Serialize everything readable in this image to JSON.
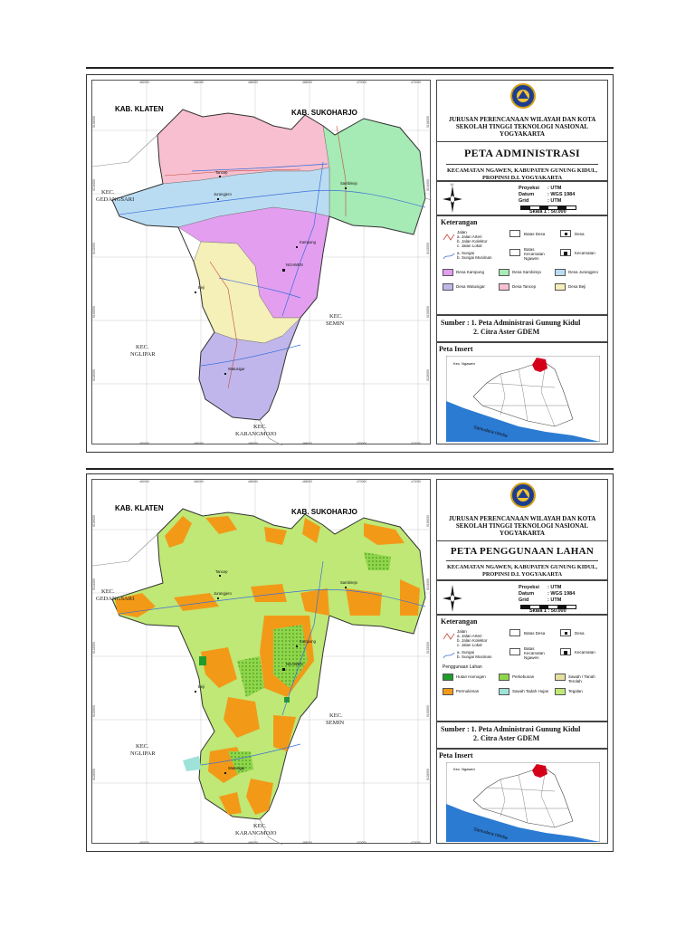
{
  "institution_line1": "JURUSAN PERENCANAAN WILAYAH DAN KOTA",
  "institution_line2": "SEKOLAH TINGGI TEKNOLOGI NASIONAL",
  "institution_line3": "YOGYAKARTA",
  "subtitle_line1": "KECAMATAN NGAWEN, KABUPATEN GUNUNG KIDUL,",
  "subtitle_line2": "PROPINSI D.I. YOGYAKARTA",
  "projection": {
    "proyeksi_label": "Proyeksi",
    "proyeksi_value": ": UTM",
    "datum_label": "Datum",
    "datum_value": ": WGS 1984",
    "grid_label": "Grid",
    "grid_value": ": UTM",
    "scale": "Skala 1 : 50.000"
  },
  "legend_title": "Keterangan",
  "legend_common": {
    "jalan": "Jalan",
    "jalan_arteri": "a. Jalan Arteri",
    "jalan_kolektor": "b. Jalan Kolektor",
    "jalan_lokal": "c. Jalan Lokal",
    "sungai_a": "a. Sungai",
    "sungai_b": "b. Sungai Musiman",
    "batas_desa": "Batas Desa",
    "batas_kecamatan": "Batas Kecamatan Ngawen",
    "desa": "Desa",
    "kecamatan": "Kecamatan"
  },
  "source_line1": "Sumber : 1. Peta Administrasi Gunung Kidul",
  "source_line2": "2. Citra Aster GDEM",
  "inset_title": "Peta Insert",
  "inset_sea": "Samudera Hindia",
  "inset_place": "Kec. Ngawen",
  "map_labels": {
    "kab_klaten": "KAB. KLATEN",
    "kab_sukoharjo": "KAB. SUKOHARJO",
    "kec": "KEC.",
    "gedangsari": "GEDANGSARI",
    "nglipar": "NGLIPAR",
    "semin": "SEMIN",
    "karangmojo": "KARANGMOJO"
  },
  "places": {
    "tancep": "Tancep",
    "sambirejo": "Sambirejo",
    "jurangjero": "Jurangjero",
    "kampung": "Kampung",
    "ngawen": "NGAWEN",
    "beji": "Beji",
    "watusigar": "Watusigar"
  },
  "ticks_x": [
    "462000",
    "464000",
    "466000",
    "468000",
    "470000",
    "472000"
  ],
  "ticks_y": [
    "9136000",
    "9134000",
    "9132000",
    "9130000",
    "9128000",
    "9126000"
  ],
  "map1": {
    "title": "PETA ADMINISTRASI",
    "legend": [
      {
        "label": "Desa Kampung",
        "color": "#e39ef0"
      },
      {
        "label": "Desa Sambirejo",
        "color": "#a6eab5"
      },
      {
        "label": "Desa Jurangjero",
        "color": "#b9dcf2"
      },
      {
        "label": "Desa Watusigar",
        "color": "#c1b6ec"
      },
      {
        "label": "Desa Tancep",
        "color": "#f7bfcf"
      },
      {
        "label": "Desa Beji",
        "color": "#f5efb8"
      }
    ]
  },
  "map2": {
    "title": "PETA PENGGUNAAN LAHAN",
    "landuse_title": "Penggunaan Lahan",
    "legend": [
      {
        "label": "Hutan Homogen",
        "color": "#1f9c2b"
      },
      {
        "label": "Perkebunan",
        "color": "#8fd64a"
      },
      {
        "label": "Sawah / Tanah Terolah",
        "color": "#e6e0a0"
      },
      {
        "label": "Permukiman",
        "color": "#f29a18"
      },
      {
        "label": "Sawah Tadah Hujan",
        "color": "#9fe2d8"
      },
      {
        "label": "Tegalan",
        "color": "#bfe876"
      }
    ]
  },
  "colors": {
    "inset_sea": "#2b7bd3",
    "inset_highlight": "#d4001a",
    "river": "#3b6fd8",
    "road": "#c44a3a"
  }
}
